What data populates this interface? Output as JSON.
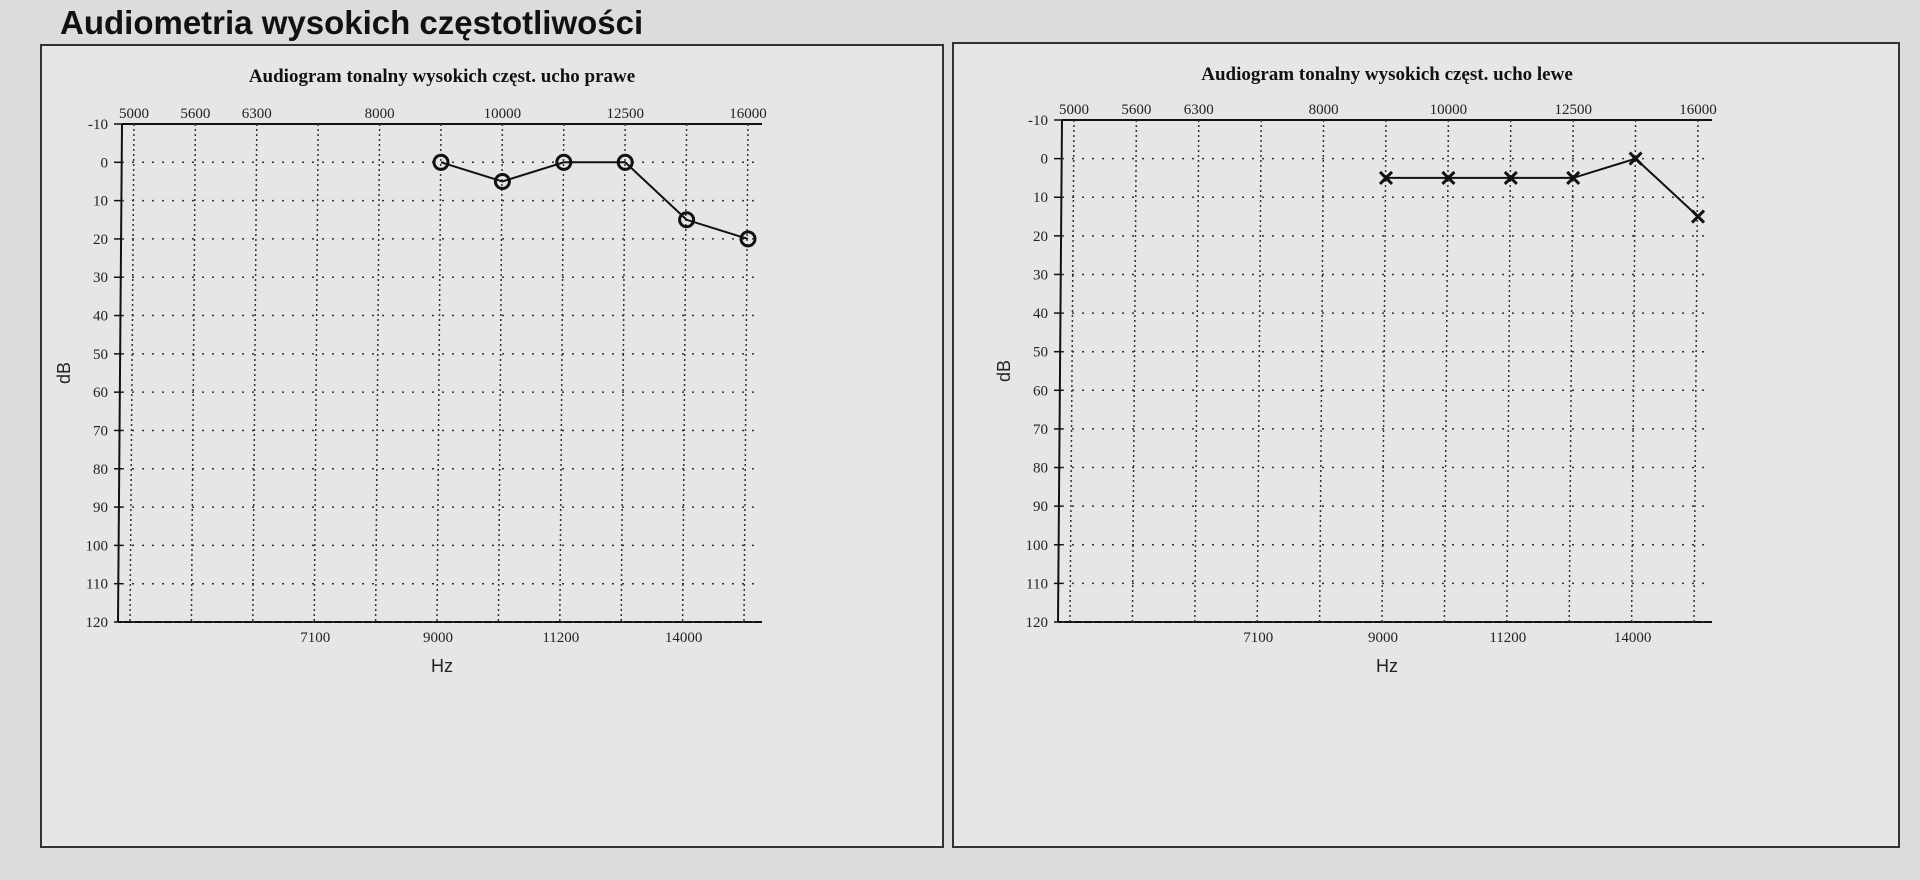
{
  "page_title": "Audiometria wysokich częstotliwości",
  "chart_data": [
    {
      "type": "line",
      "title": "Audiogram tonalny wysokich częst. ucho prawe",
      "xlabel": "Hz",
      "ylabel": "dB",
      "categories": [
        "5000",
        "5600",
        "6300",
        "7100",
        "8000",
        "9000",
        "10000",
        "11200",
        "12500",
        "14000",
        "16000"
      ],
      "top_tick_labels": [
        "5000",
        "5600",
        "6300",
        "8000",
        "10000",
        "12500",
        "16000"
      ],
      "bottom_tick_labels": [
        "7100",
        "9000",
        "11200",
        "14000"
      ],
      "y_ticks": [
        -10,
        0,
        10,
        20,
        30,
        40,
        50,
        60,
        70,
        80,
        90,
        100,
        110,
        120
      ],
      "ylim": [
        -10,
        120
      ],
      "y_inverted": true,
      "grid": true,
      "marker": "circle",
      "series": [
        {
          "x": [
            "9000",
            "10000",
            "11200",
            "12500",
            "14000",
            "16000"
          ],
          "values": [
            0,
            5,
            0,
            0,
            15,
            20
          ]
        }
      ]
    },
    {
      "type": "line",
      "title": "Audiogram tonalny wysokich częst. ucho lewe",
      "xlabel": "Hz",
      "ylabel": "dB",
      "categories": [
        "5000",
        "5600",
        "6300",
        "7100",
        "8000",
        "9000",
        "10000",
        "11200",
        "12500",
        "14000",
        "16000"
      ],
      "top_tick_labels": [
        "5000",
        "5600",
        "6300",
        "8000",
        "10000",
        "12500",
        "16000"
      ],
      "bottom_tick_labels": [
        "7100",
        "9000",
        "11200",
        "14000"
      ],
      "y_ticks": [
        -10,
        0,
        10,
        20,
        30,
        40,
        50,
        60,
        70,
        80,
        90,
        100,
        110,
        120
      ],
      "ylim": [
        -10,
        120
      ],
      "y_inverted": true,
      "grid": true,
      "marker": "cross",
      "series": [
        {
          "x": [
            "9000",
            "10000",
            "11200",
            "12500",
            "14000",
            "16000"
          ],
          "values": [
            5,
            5,
            5,
            5,
            0,
            15
          ]
        }
      ]
    }
  ]
}
